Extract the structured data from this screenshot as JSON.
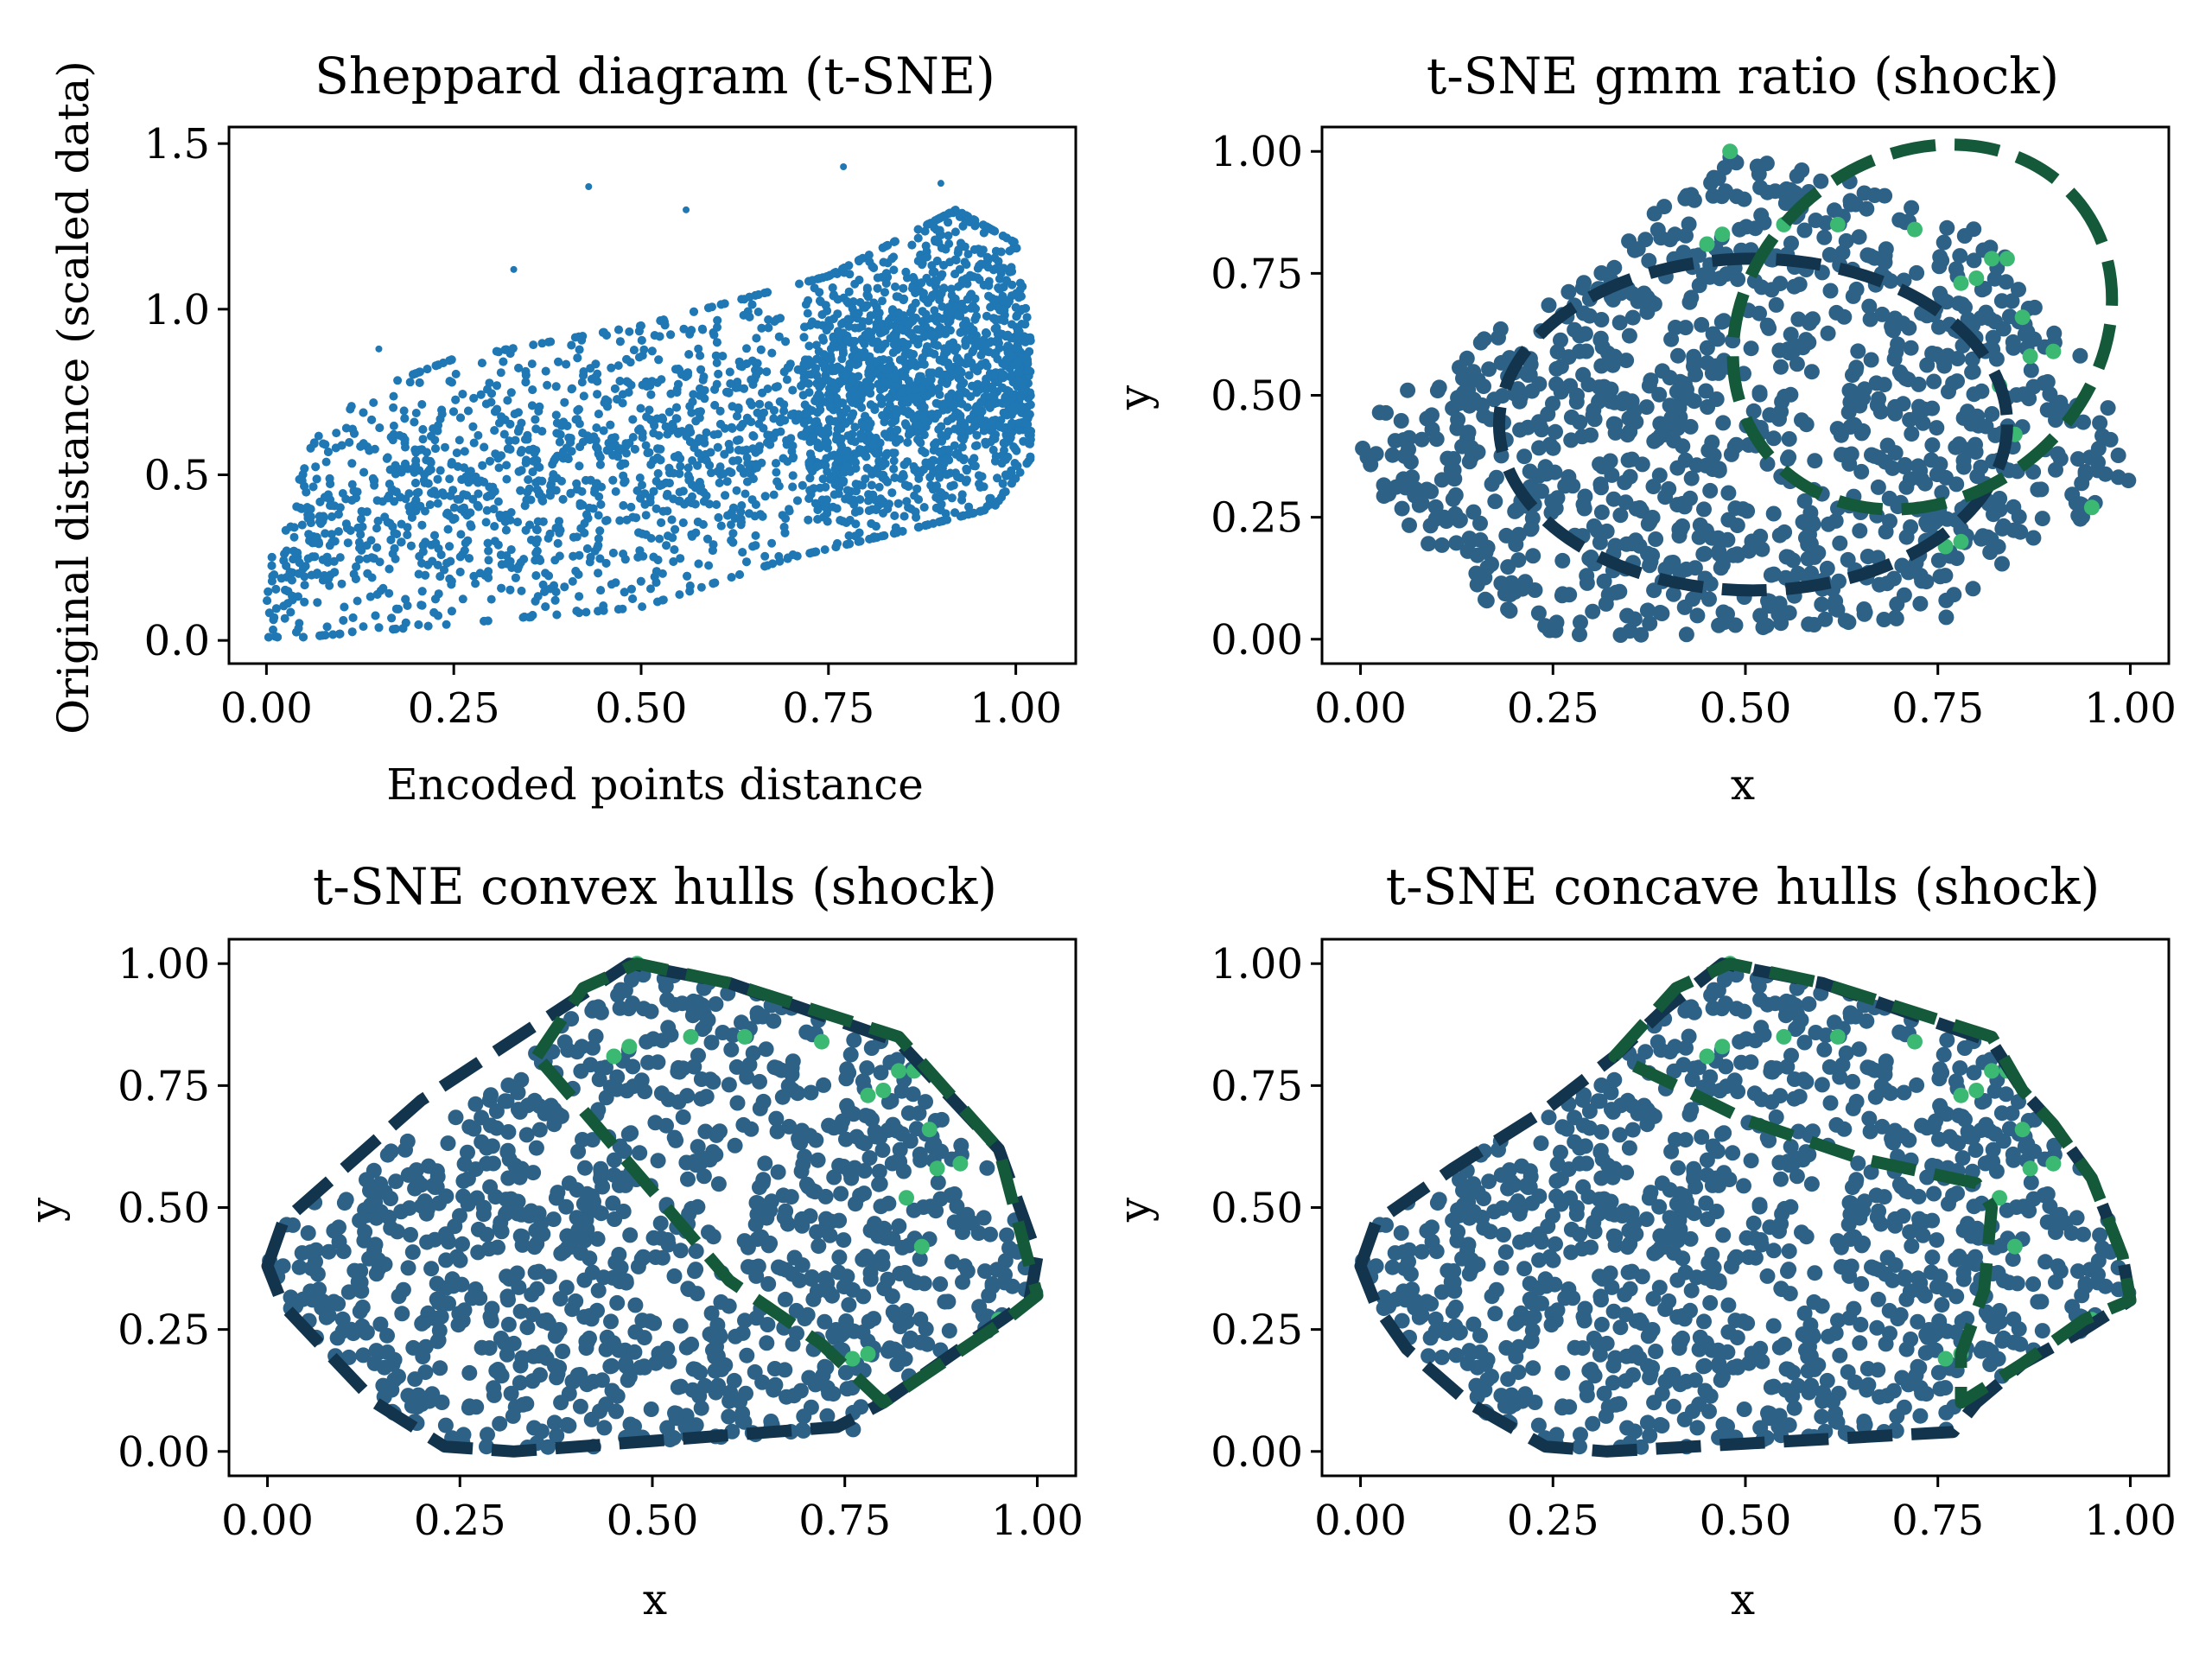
{
  "colors": {
    "sheppard_points": "#1f77b4",
    "cluster_a": "#2e6186",
    "cluster_b": "#3bb872",
    "outline_a": "#12344d",
    "outline_b": "#145a3a"
  },
  "chart_data": [
    {
      "type": "scatter",
      "title": "Sheppard diagram (t-SNE)",
      "xlabel": "Encoded points distance",
      "ylabel": "Original distance (scaled data)",
      "xlim": [
        -0.05,
        1.08
      ],
      "ylim": [
        -0.07,
        1.55
      ],
      "xticks": [
        0.0,
        0.25,
        0.5,
        0.75,
        1.0
      ],
      "xtick_labels": [
        "0.00",
        "0.25",
        "0.50",
        "0.75",
        "1.00"
      ],
      "yticks": [
        0.0,
        0.5,
        1.0,
        1.5
      ],
      "ytick_labels": [
        "0.0",
        "0.5",
        "1.0",
        "1.5"
      ],
      "grid": false,
      "point_cloud": {
        "lower_boundary": [
          [
            0.0,
            0.0
          ],
          [
            0.1,
            0.02
          ],
          [
            0.25,
            0.05
          ],
          [
            0.5,
            0.1
          ],
          [
            0.7,
            0.25
          ],
          [
            0.85,
            0.33
          ],
          [
            0.97,
            0.4
          ],
          [
            1.02,
            0.55
          ]
        ],
        "upper_boundary": [
          [
            0.0,
            0.2
          ],
          [
            0.05,
            0.55
          ],
          [
            0.1,
            0.72
          ],
          [
            0.25,
            0.85
          ],
          [
            0.5,
            0.95
          ],
          [
            0.75,
            1.1
          ],
          [
            0.92,
            1.3
          ],
          [
            1.0,
            1.2
          ],
          [
            1.02,
            0.9
          ]
        ],
        "outliers": [
          [
            0.43,
            1.37
          ],
          [
            0.77,
            1.43
          ],
          [
            0.9,
            1.38
          ],
          [
            0.56,
            1.3
          ],
          [
            0.33,
            1.12
          ],
          [
            0.15,
            0.88
          ],
          [
            1.02,
            0.75
          ]
        ]
      }
    },
    {
      "type": "scatter",
      "title": "t-SNE gmm ratio (shock)",
      "xlabel": "x",
      "ylabel": "y",
      "xlim": [
        -0.05,
        1.05
      ],
      "ylim": [
        -0.05,
        1.05
      ],
      "xticks": [
        0.0,
        0.25,
        0.5,
        0.75,
        1.0
      ],
      "xtick_labels": [
        "0.00",
        "0.25",
        "0.50",
        "0.75",
        "1.00"
      ],
      "yticks": [
        0.0,
        0.25,
        0.5,
        0.75,
        1.0
      ],
      "ytick_labels": [
        "0.00",
        "0.25",
        "0.50",
        "0.75",
        "1.00"
      ],
      "grid": false,
      "ellipses": [
        {
          "cluster": "a",
          "center": [
            0.51,
            0.44
          ],
          "width": 0.66,
          "height": 0.68,
          "angle": 0
        },
        {
          "cluster": "b",
          "center": [
            0.73,
            0.64
          ],
          "width": 0.52,
          "height": 0.7,
          "angle": -38
        }
      ]
    },
    {
      "type": "scatter",
      "title": "t-SNE convex hulls (shock)",
      "xlabel": "x",
      "ylabel": "y",
      "xlim": [
        -0.05,
        1.05
      ],
      "ylim": [
        -0.05,
        1.05
      ],
      "xticks": [
        0.0,
        0.25,
        0.5,
        0.75,
        1.0
      ],
      "xtick_labels": [
        "0.00",
        "0.25",
        "0.50",
        "0.75",
        "1.00"
      ],
      "yticks": [
        0.0,
        0.25,
        0.5,
        0.75,
        1.0
      ],
      "ytick_labels": [
        "0.00",
        "0.25",
        "0.50",
        "0.75",
        "1.00"
      ],
      "grid": false,
      "hull_a": [
        [
          0.0,
          0.38
        ],
        [
          0.02,
          0.47
        ],
        [
          0.2,
          0.72
        ],
        [
          0.47,
          1.0
        ],
        [
          0.6,
          0.96
        ],
        [
          0.82,
          0.84
        ],
        [
          0.95,
          0.62
        ],
        [
          1.0,
          0.4
        ],
        [
          0.99,
          0.31
        ],
        [
          0.8,
          0.1
        ],
        [
          0.74,
          0.05
        ],
        [
          0.32,
          0.0
        ],
        [
          0.23,
          0.01
        ],
        [
          0.14,
          0.1
        ],
        [
          0.02,
          0.3
        ]
      ],
      "hull_b": [
        [
          0.35,
          0.81
        ],
        [
          0.41,
          0.95
        ],
        [
          0.48,
          1.0
        ],
        [
          0.6,
          0.96
        ],
        [
          0.82,
          0.85
        ],
        [
          0.95,
          0.62
        ],
        [
          1.0,
          0.32
        ],
        [
          0.96,
          0.27
        ],
        [
          0.8,
          0.1
        ],
        [
          0.72,
          0.22
        ],
        [
          0.6,
          0.35
        ]
      ]
    },
    {
      "type": "scatter",
      "title": "t-SNE concave hulls (shock)",
      "xlabel": "x",
      "ylabel": "y",
      "xlim": [
        -0.05,
        1.05
      ],
      "ylim": [
        -0.05,
        1.05
      ],
      "xticks": [
        0.0,
        0.25,
        0.5,
        0.75,
        1.0
      ],
      "xtick_labels": [
        "0.00",
        "0.25",
        "0.50",
        "0.75",
        "1.00"
      ],
      "yticks": [
        0.0,
        0.25,
        0.5,
        0.75,
        1.0
      ],
      "ytick_labels": [
        "0.00",
        "0.25",
        "0.50",
        "0.75",
        "1.00"
      ],
      "grid": false,
      "hull_a": [
        [
          0.0,
          0.38
        ],
        [
          0.02,
          0.47
        ],
        [
          0.12,
          0.58
        ],
        [
          0.24,
          0.7
        ],
        [
          0.33,
          0.81
        ],
        [
          0.39,
          0.9
        ],
        [
          0.47,
          1.0
        ],
        [
          0.6,
          0.96
        ],
        [
          0.82,
          0.84
        ],
        [
          0.86,
          0.74
        ],
        [
          0.9,
          0.67
        ],
        [
          0.95,
          0.56
        ],
        [
          0.99,
          0.4
        ],
        [
          1.0,
          0.31
        ],
        [
          0.94,
          0.25
        ],
        [
          0.86,
          0.18
        ],
        [
          0.8,
          0.1
        ],
        [
          0.77,
          0.04
        ],
        [
          0.32,
          0.0
        ],
        [
          0.24,
          0.01
        ],
        [
          0.14,
          0.1
        ],
        [
          0.06,
          0.21
        ],
        [
          0.02,
          0.3
        ]
      ],
      "hull_b": [
        [
          0.33,
          0.81
        ],
        [
          0.41,
          0.95
        ],
        [
          0.48,
          1.0
        ],
        [
          0.6,
          0.96
        ],
        [
          0.82,
          0.85
        ],
        [
          0.86,
          0.74
        ],
        [
          0.9,
          0.67
        ],
        [
          0.95,
          0.56
        ],
        [
          0.99,
          0.4
        ],
        [
          1.0,
          0.31
        ],
        [
          0.94,
          0.27
        ],
        [
          0.86,
          0.18
        ],
        [
          0.78,
          0.1
        ],
        [
          0.78,
          0.2
        ],
        [
          0.81,
          0.33
        ],
        [
          0.82,
          0.5
        ],
        [
          0.8,
          0.55
        ],
        [
          0.65,
          0.6
        ],
        [
          0.5,
          0.68
        ],
        [
          0.41,
          0.75
        ]
      ],
      "hull_c": [
        [
          0.24,
          0.01
        ],
        [
          0.32,
          0.0
        ],
        [
          0.77,
          0.04
        ],
        [
          0.8,
          0.1
        ],
        [
          0.86,
          0.18
        ],
        [
          0.94,
          0.25
        ],
        [
          1.0,
          0.31
        ]
      ]
    }
  ]
}
